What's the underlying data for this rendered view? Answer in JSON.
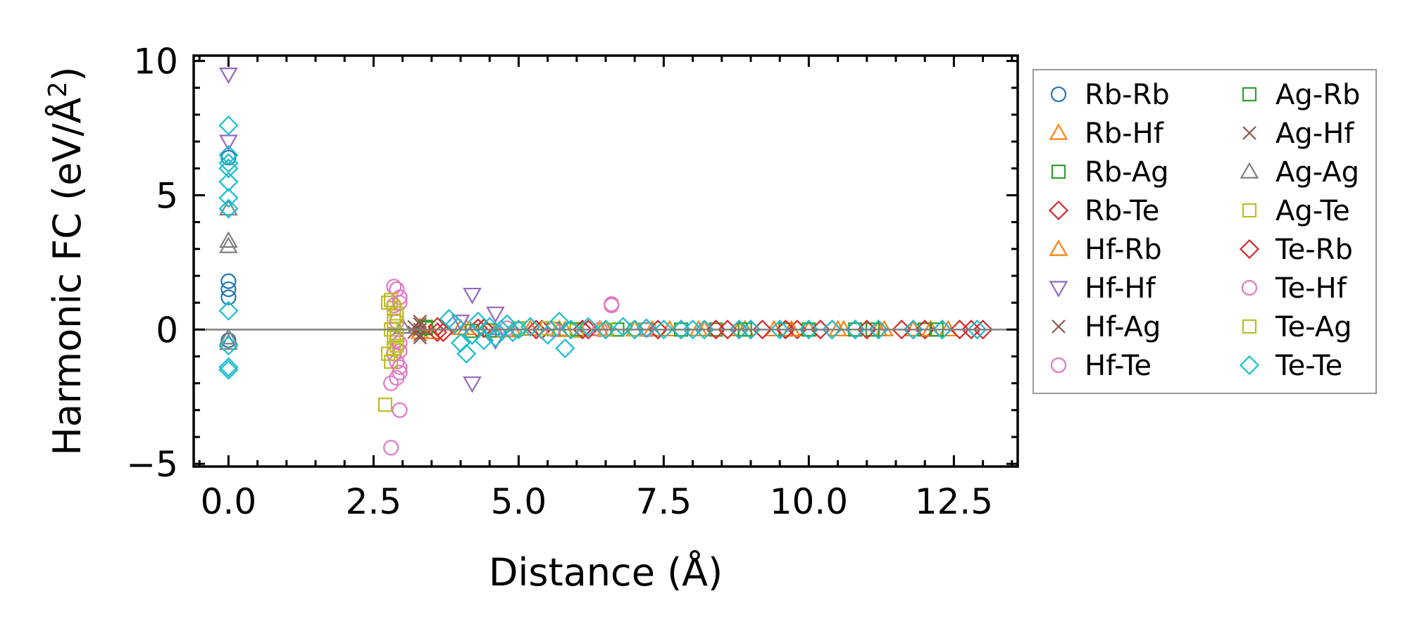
{
  "chart_data": {
    "type": "scatter",
    "title": "",
    "xlabel": "Distance (Å)",
    "ylabel_main": "Harmonic FC (eV/Å",
    "ylabel_sup": "2",
    "ylabel_close": ")",
    "xlim": [
      -0.6,
      13.6
    ],
    "ylim": [
      -5.1,
      10.2
    ],
    "xticks": [
      0,
      2.5,
      5,
      7.5,
      10,
      12.5
    ],
    "xtick_labels": [
      "0.0",
      "2.5",
      "5.0",
      "7.5",
      "10.0",
      "12.5"
    ],
    "yticks": [
      -5,
      0,
      5,
      10
    ],
    "ytick_labels": [
      "−5",
      "0",
      "5",
      "10"
    ],
    "zero_line": 0,
    "legend_position": "right-outside",
    "series": [
      {
        "name": "Rb-Rb",
        "color": "#1f77b4",
        "marker": "circle",
        "x": [
          0,
          0,
          0,
          0,
          0
        ],
        "y": [
          1.8,
          1.5,
          1.2,
          -0.4,
          6.4
        ]
      },
      {
        "name": "Rb-Hf",
        "color": "#ff7f0e",
        "marker": "triangle-up",
        "x": [
          3.3,
          3.5,
          4.0,
          4.6,
          5.2,
          5.8,
          6.4,
          7.0,
          7.6,
          8.2,
          8.8,
          9.4,
          10.0,
          10.6,
          11.2,
          11.8,
          12.4
        ],
        "y": [
          0.1,
          -0.1,
          0.05,
          -0.05,
          0.02,
          -0.02,
          0.01,
          0,
          0,
          0,
          0,
          0,
          0,
          0,
          0,
          0,
          0
        ]
      },
      {
        "name": "Rb-Ag",
        "color": "#2ca02c",
        "marker": "square",
        "x": [
          3.4,
          4.2,
          5.0,
          6.0,
          7.2,
          8.4,
          9.6,
          10.8,
          12.0
        ],
        "y": [
          0.1,
          -0.05,
          0.03,
          0.01,
          0,
          0,
          0,
          0,
          0
        ]
      },
      {
        "name": "Rb-Te",
        "color": "#d62728",
        "marker": "diamond",
        "x": [
          3.6,
          3.7,
          4.3,
          5.4,
          6.2,
          7.0,
          7.8,
          8.4,
          8.8,
          9.2,
          9.8,
          10.4,
          10.8,
          11.2,
          11.6,
          12.0,
          12.3,
          12.8,
          13.0
        ],
        "y": [
          0.1,
          -0.1,
          0.05,
          0,
          0,
          0,
          0,
          0,
          0,
          0,
          0,
          0,
          0,
          0,
          0,
          0,
          0,
          0,
          0
        ]
      },
      {
        "name": "Hf-Rb",
        "color": "#ff7f0e",
        "marker": "triangle-up",
        "x": [
          3.3,
          4.1,
          4.9,
          5.7,
          6.5,
          7.3,
          8.1,
          8.9,
          9.7,
          10.5,
          11.3,
          12.1
        ],
        "y": [
          -0.1,
          0.05,
          -0.03,
          0.01,
          0,
          0,
          0,
          0,
          0,
          0,
          0,
          0
        ]
      },
      {
        "name": "Hf-Hf",
        "color": "#9467bd",
        "marker": "triangle-down",
        "x": [
          0,
          0,
          4.2,
          4.2,
          4.6,
          4.6,
          4.0
        ],
        "y": [
          9.5,
          7.0,
          1.3,
          -2.0,
          0.6,
          -0.4,
          0.3
        ]
      },
      {
        "name": "Hf-Ag",
        "color": "#8c564b",
        "marker": "x",
        "x": [
          3.3,
          3.3,
          3.3,
          3.2
        ],
        "y": [
          0.3,
          -0.3,
          0.0,
          0.1
        ]
      },
      {
        "name": "Hf-Te",
        "color": "#e377c2",
        "marker": "circle",
        "x": [
          2.85,
          2.9,
          2.95,
          2.85,
          2.9,
          2.95,
          2.9,
          2.95,
          2.8,
          2.8,
          2.9,
          2.85,
          2.95,
          6.6,
          6.6,
          6.4
        ],
        "y": [
          1.6,
          1.5,
          1.2,
          0.9,
          -0.4,
          -0.8,
          -1.2,
          -1.6,
          -2.0,
          -4.4,
          -1.8,
          -0.9,
          -3.0,
          0.9,
          0.95,
          0.0
        ]
      },
      {
        "name": "Ag-Rb",
        "color": "#2ca02c",
        "marker": "square",
        "x": [
          3.4,
          4.5,
          5.6,
          6.7,
          7.8,
          8.9,
          10.0,
          11.1,
          12.2
        ],
        "y": [
          0.05,
          -0.03,
          0.02,
          0,
          0,
          0,
          0,
          0,
          0
        ]
      },
      {
        "name": "Ag-Hf",
        "color": "#8c564b",
        "marker": "x",
        "x": [
          3.3,
          3.3,
          3.2
        ],
        "y": [
          0.2,
          -0.2,
          -0.1
        ]
      },
      {
        "name": "Ag-Ag",
        "color": "#7f7f7f",
        "marker": "triangle-up",
        "x": [
          0,
          0,
          0,
          0,
          0,
          3.0
        ],
        "y": [
          4.5,
          3.3,
          3.1,
          -0.3,
          -0.5,
          0.1
        ]
      },
      {
        "name": "Ag-Te",
        "color": "#bcbd22",
        "marker": "square",
        "x": [
          2.75,
          2.8,
          2.85,
          2.9,
          2.8,
          2.85,
          2.9,
          2.75,
          2.8,
          2.7,
          5.0,
          6.0,
          7.0
        ],
        "y": [
          1.0,
          1.1,
          0.8,
          0.5,
          0.0,
          -0.3,
          -0.6,
          -0.9,
          -1.2,
          -2.8,
          0.05,
          -0.05,
          0
        ]
      },
      {
        "name": "Te-Rb",
        "color": "#d62728",
        "marker": "diamond",
        "x": [
          3.6,
          4.4,
          5.3,
          6.1,
          7.4,
          8.6,
          9.0,
          9.6,
          10.2,
          11.0,
          11.8,
          12.6
        ],
        "y": [
          -0.1,
          0.05,
          0,
          0,
          0,
          0,
          0,
          0,
          0,
          0,
          0,
          0
        ]
      },
      {
        "name": "Te-Hf",
        "color": "#e377c2",
        "marker": "circle",
        "x": [
          2.95,
          2.95,
          2.9,
          2.95,
          4.8,
          5.6,
          7.2
        ],
        "y": [
          1.0,
          -0.5,
          0.3,
          -1.4,
          0.05,
          0.0,
          0
        ]
      },
      {
        "name": "Te-Ag",
        "color": "#bcbd22",
        "marker": "square",
        "x": [
          2.85,
          2.9,
          2.85,
          2.9,
          5.5,
          6.5
        ],
        "y": [
          0.3,
          -0.2,
          -0.7,
          0.6,
          0.05,
          0
        ]
      },
      {
        "name": "Te-Te",
        "color": "#17becf",
        "marker": "diamond",
        "x": [
          0,
          0,
          0,
          0,
          0,
          0,
          0,
          0,
          0,
          0,
          0,
          3.8,
          3.9,
          4.0,
          4.1,
          4.2,
          4.3,
          4.4,
          4.5,
          4.6,
          4.7,
          4.8,
          4.9,
          5.0,
          5.2,
          5.5,
          5.7,
          5.8,
          5.9,
          6.2,
          6.5,
          6.8,
          7.0,
          7.2,
          7.5,
          7.8,
          8.0,
          8.2,
          8.8,
          9.0,
          9.5,
          10.0,
          10.4,
          10.8,
          11.2,
          11.8,
          12.3,
          12.9
        ],
        "y": [
          7.6,
          6.5,
          6.0,
          5.5,
          4.9,
          4.5,
          0.7,
          -1.4,
          -1.5,
          6.2,
          -0.6,
          0.4,
          0.2,
          -0.5,
          -0.9,
          -0.2,
          0.3,
          -0.4,
          0.1,
          -0.3,
          0.0,
          0.2,
          -0.1,
          0.0,
          0.1,
          -0.2,
          0.3,
          -0.7,
          0.0,
          0.1,
          0.0,
          0.1,
          0.0,
          0.05,
          0,
          0,
          0,
          0,
          0,
          0,
          0,
          0,
          0,
          0,
          0,
          0,
          0,
          0
        ]
      }
    ]
  }
}
